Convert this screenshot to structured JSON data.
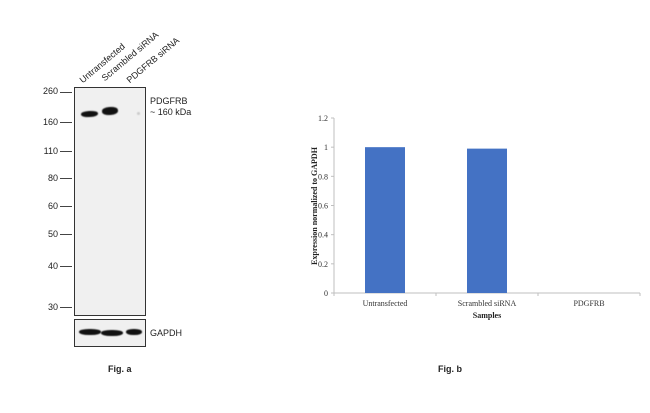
{
  "figure_a": {
    "lane_labels": [
      "Untransfected",
      "Scrambled siRNA",
      "PDGFRB siRNA"
    ],
    "mw_markers": [
      "260",
      "160",
      "110",
      "80",
      "60",
      "50",
      "40",
      "30"
    ],
    "target_label": "PDGFRB",
    "target_size": "~ 160 kDa",
    "loading_control": "GAPDH",
    "caption": "Fig. a"
  },
  "chart_data": {
    "type": "bar",
    "title": "",
    "categories": [
      "Untransfected",
      "Scrambled siRNA",
      "PDGFRB"
    ],
    "values": [
      1.0,
      0.99,
      0.0
    ],
    "xlabel": "Samples",
    "ylabel": "Expression normalized to GAPDH",
    "ylim": [
      0,
      1.2
    ],
    "yticks": [
      "0",
      "0.2",
      "0.4",
      "0.6",
      "0.8",
      "1",
      "1.2"
    ],
    "bar_color": "#4472c4",
    "grid": false,
    "legend": "none",
    "caption": "Fig. b"
  }
}
